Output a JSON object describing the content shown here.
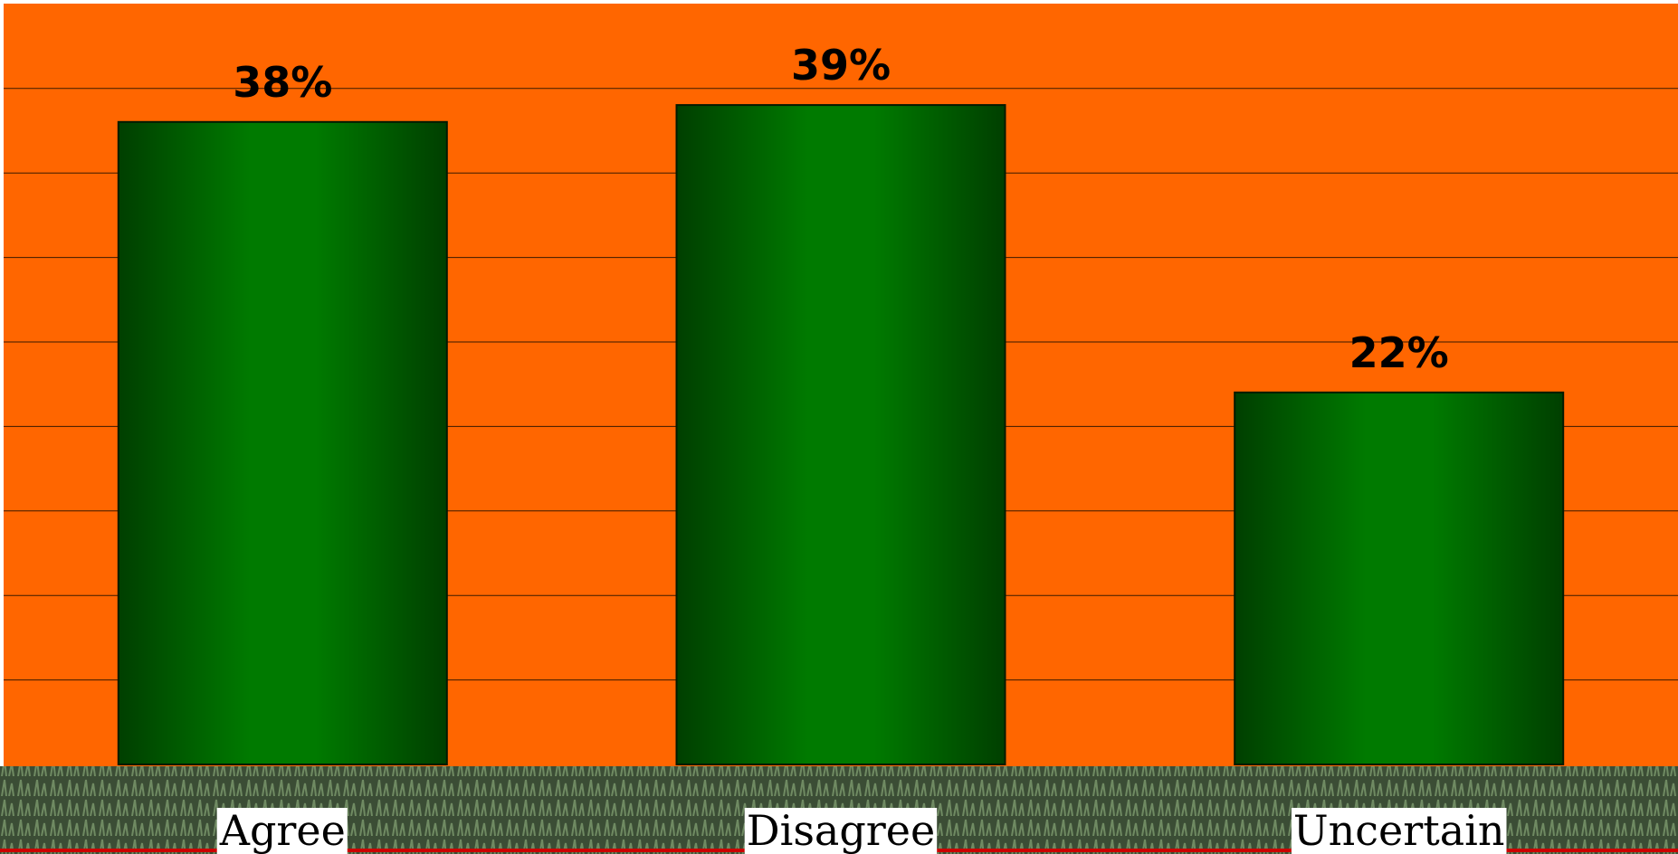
{
  "chart_data": {
    "type": "bar",
    "categories": [
      "Agree",
      "Disagree",
      "Uncertain"
    ],
    "values": [
      38,
      39,
      22
    ],
    "value_labels": [
      "38%",
      "39%",
      "22%"
    ],
    "ylim": [
      0,
      45
    ],
    "grid": true,
    "title": "",
    "xlabel": "",
    "ylabel": ""
  },
  "colors": {
    "plot_background": "#ff6600",
    "bar_dark": "#003f00",
    "bar_light": "#007a00",
    "bar_outline": "#001a00",
    "gridline": "#3a1a00",
    "baseline_accent": "#cc0000",
    "ground_dark": "#3b4d35",
    "ground_light": "#6f8a62"
  }
}
